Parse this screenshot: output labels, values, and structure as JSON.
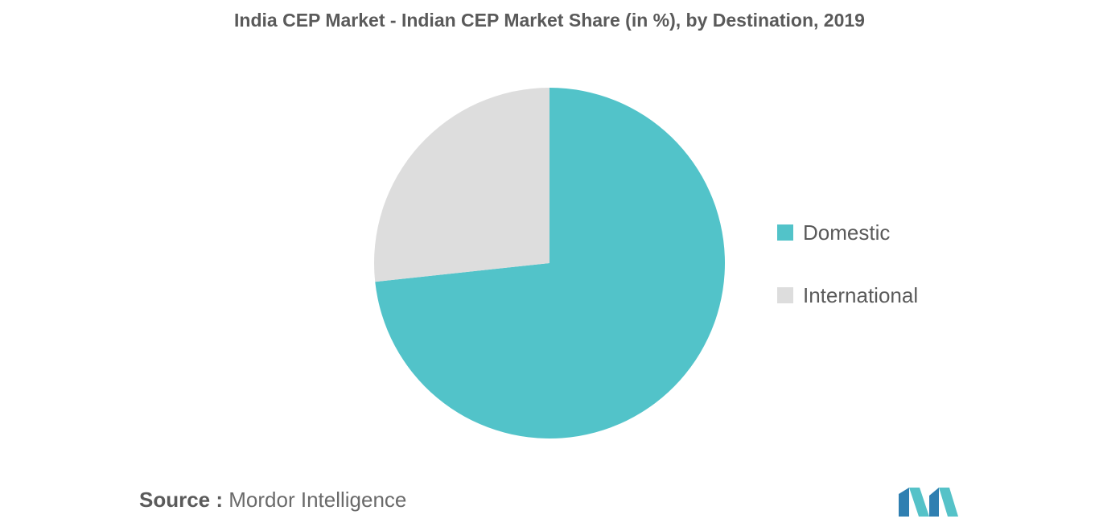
{
  "chart_data": {
    "type": "pie",
    "title": "India CEP Market - Indian CEP Market Share (in %), by Destination, 2019",
    "slices": [
      {
        "name": "Domestic",
        "value": 73.3,
        "color": "#52c3c9"
      },
      {
        "name": "International",
        "value": 26.7,
        "color": "#dddddd"
      }
    ],
    "legend_position": "right"
  },
  "source": {
    "label": "Source :",
    "text": "Mordor Intelligence"
  },
  "logo": {
    "colors": [
      "#2f7fb1",
      "#55c2c8"
    ]
  }
}
